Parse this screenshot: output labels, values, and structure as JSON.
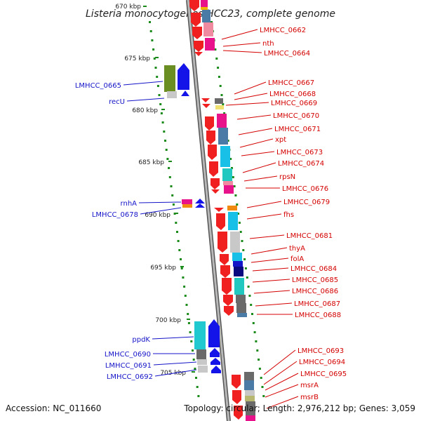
{
  "title": "Listeria monocytogenes HCC23, complete genome",
  "footer": {
    "accession": "Accession: NC_011660",
    "summary": "Topology: circular; Length: 2,976,212 bp; Genes: 3,059"
  },
  "colors": {
    "right_label": "#d40000",
    "left_label": "#1414c8",
    "backbone": "#8a8a8a",
    "ticks": "#1a8a1a"
  },
  "kbp_marks": [
    "670 kbp",
    "675 kbp",
    "680 kbp",
    "685 kbp",
    "690 kbp",
    "695 kbp",
    "700 kbp",
    "705 kbp"
  ],
  "right_genes": [
    "LMHCC_0662",
    "nth",
    "LMHCC_0664",
    "LMHCC_0667",
    "LMHCC_0668",
    "LMHCC_0669",
    "LMHCC_0670",
    "LMHCC_0671",
    "xpt",
    "LMHCC_0673",
    "LMHCC_0674",
    "rpsN",
    "LMHCC_0676",
    "LMHCC_0679",
    "fhs",
    "LMHCC_0681",
    "thyA",
    "folA",
    "LMHCC_0684",
    "LMHCC_0685",
    "LMHCC_0686",
    "LMHCC_0687",
    "LMHCC_0688",
    "LMHCC_0693",
    "LMHCC_0694",
    "LMHCC_0695",
    "msrA",
    "msrB"
  ],
  "left_genes": [
    "LMHCC_0665",
    "recU",
    "rnhA",
    "LMHCC_0678",
    "ppdK",
    "LMHCC_0690",
    "LMHCC_0691",
    "LMHCC_0692"
  ]
}
